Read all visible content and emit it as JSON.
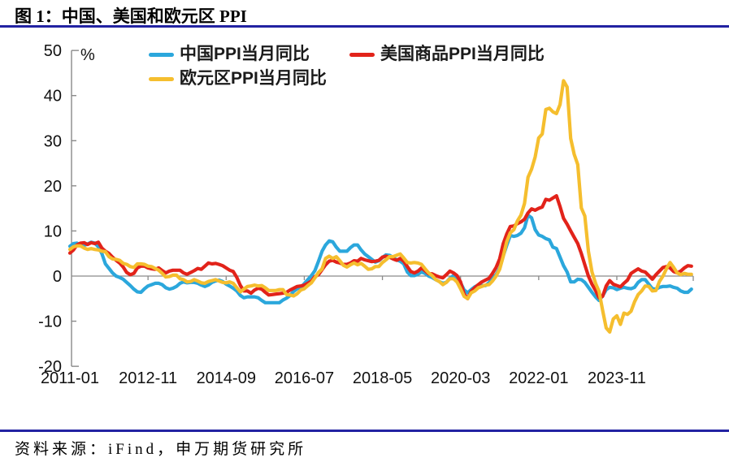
{
  "header": {
    "title": "图 1：中国、美国和欧元区 PPI"
  },
  "footer": {
    "source": "资料来源：iFind，申万期货研究所"
  },
  "colors": {
    "rule_navy": "#2222A2",
    "axis_gray": "#8a8a8a",
    "china_blue": "#2BA7DC",
    "us_red": "#E2231A",
    "eurozone_gold": "#F5BE2E"
  },
  "chart_data": {
    "type": "line",
    "title": "图 1：中国、美国和欧元区 PPI",
    "unit_label": "%",
    "xlabel": "",
    "ylabel": "%",
    "ylim": [
      -20,
      50
    ],
    "y_ticks": [
      50,
      40,
      30,
      20,
      10,
      0,
      -10,
      -20
    ],
    "grid": false,
    "legend_position": "top",
    "x_start": "2011-01",
    "x_freq": "monthly",
    "x_tick_labels": [
      "2011-01",
      "2012-11",
      "2014-09",
      "2016-07",
      "2018-05",
      "2020-03",
      "2022-01",
      "2023-11"
    ],
    "x_tick_positions": [
      0,
      22,
      44,
      66,
      88,
      110,
      132,
      154
    ],
    "series": [
      {
        "id": "china",
        "name": "中国PPI当月同比",
        "color": "#2BA7DC",
        "values": [
          6.6,
          7.2,
          7.3,
          6.8,
          6.8,
          7.1,
          7.5,
          7.3,
          6.5,
          5.0,
          2.7,
          1.7,
          0.7,
          0.0,
          -0.3,
          -0.7,
          -1.4,
          -2.1,
          -2.9,
          -3.5,
          -3.6,
          -2.8,
          -2.2,
          -1.9,
          -1.6,
          -1.6,
          -1.9,
          -2.6,
          -2.9,
          -2.7,
          -2.3,
          -1.6,
          -1.3,
          -1.5,
          -1.4,
          -1.4,
          -1.6,
          -2.0,
          -2.3,
          -2.0,
          -1.4,
          -1.1,
          -0.9,
          -1.2,
          -1.8,
          -2.2,
          -2.7,
          -3.3,
          -4.3,
          -4.8,
          -4.6,
          -4.6,
          -4.6,
          -4.8,
          -5.4,
          -5.9,
          -5.9,
          -5.9,
          -5.9,
          -5.9,
          -5.3,
          -4.9,
          -4.3,
          -3.4,
          -2.8,
          -2.6,
          -1.7,
          -0.8,
          0.1,
          1.2,
          3.3,
          5.5,
          6.9,
          7.8,
          7.6,
          6.4,
          5.5,
          5.5,
          5.5,
          6.3,
          6.9,
          6.9,
          5.8,
          4.9,
          4.3,
          3.7,
          3.1,
          3.4,
          4.1,
          4.7,
          4.6,
          4.1,
          3.6,
          3.3,
          2.7,
          0.9,
          0.1,
          0.1,
          0.4,
          0.9,
          0.6,
          0.0,
          -0.3,
          -0.8,
          -1.2,
          -1.6,
          -1.4,
          -0.5,
          0.1,
          -0.4,
          -1.5,
          -3.1,
          -3.7,
          -3.0,
          -2.4,
          -2.0,
          -2.1,
          -2.1,
          -1.5,
          -0.4,
          0.3,
          1.7,
          4.4,
          6.8,
          9.0,
          8.8,
          9.0,
          9.5,
          10.7,
          13.5,
          12.9,
          10.3,
          9.1,
          8.8,
          8.3,
          8.0,
          6.4,
          6.1,
          4.2,
          2.3,
          0.9,
          -1.3,
          -1.3,
          -0.7,
          -0.8,
          -1.4,
          -2.5,
          -3.6,
          -4.6,
          -5.4,
          -4.4,
          -3.0,
          -2.5,
          -2.6,
          -3.0,
          -2.7,
          -2.5,
          -2.7,
          -2.8,
          -2.5,
          -1.4,
          -0.8,
          -0.8,
          -1.8,
          -2.8,
          -2.9,
          -2.5,
          -2.3,
          -2.3,
          -2.2,
          -2.5,
          -2.7,
          -3.3,
          -3.6,
          -3.6,
          -2.9
        ]
      },
      {
        "id": "us",
        "name": "美国商品PPI当月同比",
        "color": "#E2231A",
        "values": [
          5.1,
          5.8,
          6.9,
          7.3,
          7.4,
          7.0,
          7.4,
          7.2,
          7.5,
          6.2,
          5.5,
          5.0,
          4.2,
          3.5,
          2.9,
          2.0,
          0.8,
          0.3,
          0.6,
          1.8,
          2.2,
          2.2,
          1.8,
          1.6,
          1.5,
          1.8,
          1.2,
          0.7,
          1.1,
          1.3,
          1.3,
          1.3,
          0.7,
          0.4,
          0.8,
          1.2,
          1.7,
          1.5,
          2.2,
          2.9,
          2.7,
          2.8,
          2.6,
          2.3,
          1.8,
          1.3,
          1.0,
          -0.3,
          -2.1,
          -3.3,
          -3.3,
          -3.8,
          -3.1,
          -2.7,
          -2.9,
          -3.6,
          -4.2,
          -4.1,
          -4.0,
          -3.9,
          -3.8,
          -3.6,
          -3.1,
          -2.7,
          -2.3,
          -2.2,
          -2.0,
          -1.6,
          -1.1,
          -0.1,
          0.3,
          1.4,
          2.5,
          3.3,
          3.5,
          3.1,
          2.9,
          2.6,
          2.6,
          2.9,
          3.4,
          3.3,
          3.9,
          3.6,
          3.4,
          3.2,
          3.3,
          3.5,
          4.2,
          4.4,
          4.2,
          3.8,
          3.5,
          3.9,
          3.3,
          2.1,
          1.0,
          0.7,
          1.1,
          1.8,
          1.2,
          0.5,
          0.5,
          0.1,
          -0.2,
          -0.4,
          0.3,
          1.1,
          0.7,
          0.1,
          -1.3,
          -4.0,
          -5.0,
          -3.4,
          -2.6,
          -1.9,
          -1.3,
          -0.9,
          -0.5,
          0.6,
          1.9,
          3.8,
          7.1,
          9.3,
          11.0,
          11.1,
          11.6,
          12.0,
          12.6,
          14.0,
          14.9,
          14.6,
          15.0,
          15.3,
          17.0,
          16.8,
          17.3,
          17.8,
          15.4,
          12.8,
          11.5,
          10.0,
          8.6,
          7.2,
          5.0,
          2.5,
          0.0,
          -1.8,
          -3.2,
          -4.8,
          -4.5,
          -2.2,
          -1.0,
          -1.8,
          -2.1,
          -2.4,
          -1.6,
          -0.9,
          0.6,
          1.1,
          1.6,
          1.1,
          0.9,
          0.1,
          -0.7,
          0.3,
          1.1,
          1.9,
          2.1,
          1.8,
          1.0,
          0.7,
          1.1,
          1.8,
          2.3,
          2.2
        ]
      },
      {
        "id": "eurozone",
        "name": "欧元区PPI当月同比",
        "color": "#F5BE2E",
        "values": [
          5.9,
          6.5,
          6.7,
          6.7,
          6.2,
          5.9,
          6.1,
          5.9,
          5.8,
          5.5,
          5.4,
          4.3,
          3.8,
          3.7,
          3.5,
          2.8,
          2.6,
          2.1,
          1.9,
          2.7,
          2.7,
          2.6,
          2.2,
          2.1,
          1.7,
          1.3,
          0.6,
          -0.2,
          -0.1,
          0.2,
          0.2,
          -0.6,
          -0.8,
          -1.3,
          -1.2,
          -0.8,
          -1.1,
          -1.5,
          -1.6,
          -1.2,
          -1.0,
          -0.8,
          -1.1,
          -1.4,
          -1.5,
          -1.3,
          -1.6,
          -2.6,
          -3.5,
          -2.9,
          -2.3,
          -2.2,
          -2.0,
          -2.2,
          -2.1,
          -2.6,
          -3.2,
          -3.2,
          -3.2,
          -3.0,
          -3.0,
          -4.1,
          -4.2,
          -4.4,
          -3.9,
          -3.1,
          -2.8,
          -2.1,
          -1.5,
          -0.4,
          0.8,
          1.6,
          3.9,
          4.4,
          3.9,
          4.3,
          3.4,
          2.4,
          2.0,
          2.5,
          2.9,
          2.5,
          2.8,
          2.2,
          1.5,
          1.6,
          2.1,
          2.1,
          3.0,
          3.6,
          4.3,
          4.3,
          4.6,
          4.9,
          4.0,
          3.0,
          2.9,
          3.0,
          2.9,
          2.6,
          1.6,
          0.7,
          0.1,
          -0.8,
          -1.2,
          -1.9,
          -1.4,
          -0.6,
          -0.6,
          -1.3,
          -2.8,
          -4.5,
          -5.0,
          -3.7,
          -3.3,
          -2.6,
          -2.3,
          -2.0,
          -1.9,
          -1.1,
          0.0,
          1.5,
          4.3,
          7.6,
          9.6,
          10.3,
          12.2,
          13.5,
          16.1,
          21.9,
          23.7,
          26.4,
          30.6,
          31.5,
          36.9,
          37.2,
          36.4,
          36.0,
          38.0,
          43.3,
          41.9,
          30.5,
          27.0,
          24.7,
          15.1,
          13.3,
          5.5,
          0.9,
          -1.6,
          -3.4,
          -7.6,
          -11.5,
          -12.4,
          -9.5,
          -8.8,
          -10.7,
          -8.2,
          -8.5,
          -7.8,
          -5.7,
          -4.1,
          -3.3,
          -2.2,
          -2.3,
          -3.3,
          -3.2,
          -1.2,
          0.0,
          1.7,
          3.0,
          1.9,
          0.7,
          0.3,
          0.6,
          0.4,
          0.4
        ]
      }
    ]
  }
}
